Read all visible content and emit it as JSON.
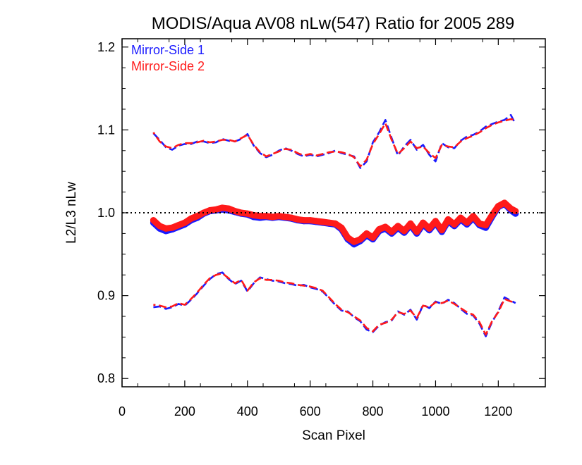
{
  "chart_data": {
    "type": "line",
    "title": "MODIS/Aqua AV08 nLw(547) Ratio for 2005 289",
    "xlabel": "Scan Pixel",
    "ylabel": "L2/L3 nLw",
    "xlim": [
      0,
      1350
    ],
    "ylim": [
      0.79,
      1.21
    ],
    "xticks": [
      0,
      200,
      400,
      600,
      800,
      1000,
      1200
    ],
    "xtick_labels": [
      "0",
      "200",
      "400",
      "600",
      "800",
      "1000",
      "1200"
    ],
    "yticks": [
      0.8,
      0.9,
      1.0,
      1.1,
      1.2
    ],
    "ytick_labels": [
      "0.8",
      "0.9",
      "1.0",
      "1.1",
      "1.2"
    ],
    "reference_line": {
      "y": 1.0,
      "style": "dotted",
      "color": "#000000"
    },
    "legend": {
      "position": "top-left",
      "entries": [
        "Mirror-Side 1",
        "Mirror-Side 2"
      ]
    },
    "colors": {
      "Mirror-Side 1": "#1a1aff",
      "Mirror-Side 2": "#ff1a1a"
    },
    "x": [
      100,
      120,
      140,
      160,
      180,
      200,
      220,
      240,
      260,
      280,
      300,
      320,
      340,
      360,
      380,
      400,
      420,
      440,
      460,
      480,
      500,
      520,
      540,
      560,
      580,
      600,
      620,
      640,
      660,
      680,
      700,
      720,
      740,
      760,
      780,
      800,
      820,
      840,
      860,
      880,
      900,
      920,
      940,
      960,
      980,
      1000,
      1020,
      1040,
      1060,
      1080,
      1100,
      1120,
      1140,
      1160,
      1180,
      1200,
      1220,
      1240,
      1255
    ],
    "series": [
      {
        "name": "Mirror-Side 1",
        "upper": [
          1.096,
          1.088,
          1.079,
          1.076,
          1.081,
          1.083,
          1.083,
          1.086,
          1.086,
          1.084,
          1.085,
          1.089,
          1.087,
          1.086,
          1.089,
          1.095,
          1.081,
          1.072,
          1.067,
          1.07,
          1.075,
          1.078,
          1.075,
          1.071,
          1.068,
          1.07,
          1.068,
          1.07,
          1.072,
          1.075,
          1.072,
          1.07,
          1.068,
          1.054,
          1.062,
          1.085,
          1.097,
          1.112,
          1.09,
          1.069,
          1.08,
          1.088,
          1.076,
          1.082,
          1.07,
          1.062,
          1.084,
          1.079,
          1.078,
          1.087,
          1.092,
          1.094,
          1.098,
          1.104,
          1.107,
          1.11,
          1.112,
          1.118,
          1.107
        ],
        "center": [
          0.988,
          0.981,
          0.978,
          0.98,
          0.983,
          0.986,
          0.991,
          0.994,
          0.999,
          1.002,
          1.003,
          1.004,
          1.003,
          1.001,
          0.999,
          0.998,
          0.995,
          0.994,
          0.995,
          0.994,
          0.995,
          0.994,
          0.993,
          0.991,
          0.99,
          0.99,
          0.989,
          0.988,
          0.987,
          0.986,
          0.98,
          0.968,
          0.962,
          0.966,
          0.973,
          0.968,
          0.978,
          0.981,
          0.975,
          0.982,
          0.976,
          0.985,
          0.975,
          0.986,
          0.979,
          0.988,
          0.977,
          0.99,
          0.984,
          0.992,
          0.986,
          0.994,
          0.985,
          0.982,
          0.995,
          1.007,
          1.011,
          1.003,
          0.999
        ],
        "lower": [
          0.886,
          0.887,
          0.884,
          0.886,
          0.89,
          0.888,
          0.895,
          0.903,
          0.912,
          0.92,
          0.926,
          0.928,
          0.92,
          0.914,
          0.918,
          0.905,
          0.915,
          0.922,
          0.92,
          0.918,
          0.917,
          0.915,
          0.914,
          0.912,
          0.913,
          0.91,
          0.908,
          0.905,
          0.897,
          0.889,
          0.882,
          0.881,
          0.874,
          0.869,
          0.859,
          0.856,
          0.864,
          0.868,
          0.87,
          0.881,
          0.877,
          0.883,
          0.871,
          0.889,
          0.885,
          0.893,
          0.89,
          0.895,
          0.891,
          0.884,
          0.878,
          0.876,
          0.866,
          0.851,
          0.868,
          0.881,
          0.898,
          0.894,
          0.891
        ]
      },
      {
        "name": "Mirror-Side 2",
        "upper": [
          1.097,
          1.086,
          1.08,
          1.078,
          1.082,
          1.084,
          1.084,
          1.085,
          1.087,
          1.085,
          1.086,
          1.088,
          1.088,
          1.086,
          1.09,
          1.094,
          1.082,
          1.073,
          1.068,
          1.071,
          1.074,
          1.077,
          1.076,
          1.072,
          1.069,
          1.071,
          1.069,
          1.071,
          1.073,
          1.074,
          1.073,
          1.071,
          1.067,
          1.056,
          1.064,
          1.083,
          1.095,
          1.108,
          1.088,
          1.071,
          1.078,
          1.086,
          1.078,
          1.08,
          1.072,
          1.066,
          1.082,
          1.08,
          1.079,
          1.086,
          1.09,
          1.093,
          1.097,
          1.102,
          1.106,
          1.109,
          1.111,
          1.113,
          1.112
        ],
        "center": [
          0.991,
          0.984,
          0.981,
          0.982,
          0.985,
          0.988,
          0.993,
          0.996,
          1.0,
          1.003,
          1.004,
          1.006,
          1.005,
          1.002,
          1.0,
          0.999,
          0.997,
          0.996,
          0.996,
          0.995,
          0.996,
          0.995,
          0.994,
          0.992,
          0.991,
          0.991,
          0.99,
          0.989,
          0.988,
          0.987,
          0.982,
          0.97,
          0.965,
          0.968,
          0.975,
          0.97,
          0.98,
          0.983,
          0.977,
          0.984,
          0.978,
          0.987,
          0.977,
          0.988,
          0.981,
          0.99,
          0.979,
          0.992,
          0.986,
          0.994,
          0.988,
          0.996,
          0.987,
          0.985,
          0.997,
          1.008,
          1.012,
          1.005,
          1.002
        ],
        "lower": [
          0.889,
          0.888,
          0.886,
          0.887,
          0.891,
          0.889,
          0.896,
          0.904,
          0.913,
          0.921,
          0.925,
          0.927,
          0.921,
          0.915,
          0.919,
          0.906,
          0.916,
          0.921,
          0.919,
          0.919,
          0.918,
          0.916,
          0.915,
          0.913,
          0.912,
          0.911,
          0.909,
          0.906,
          0.898,
          0.89,
          0.883,
          0.88,
          0.875,
          0.87,
          0.861,
          0.857,
          0.865,
          0.867,
          0.871,
          0.88,
          0.878,
          0.882,
          0.873,
          0.888,
          0.886,
          0.892,
          0.891,
          0.894,
          0.89,
          0.885,
          0.88,
          0.877,
          0.868,
          0.853,
          0.869,
          0.88,
          0.896,
          0.893,
          0.892
        ]
      }
    ]
  }
}
